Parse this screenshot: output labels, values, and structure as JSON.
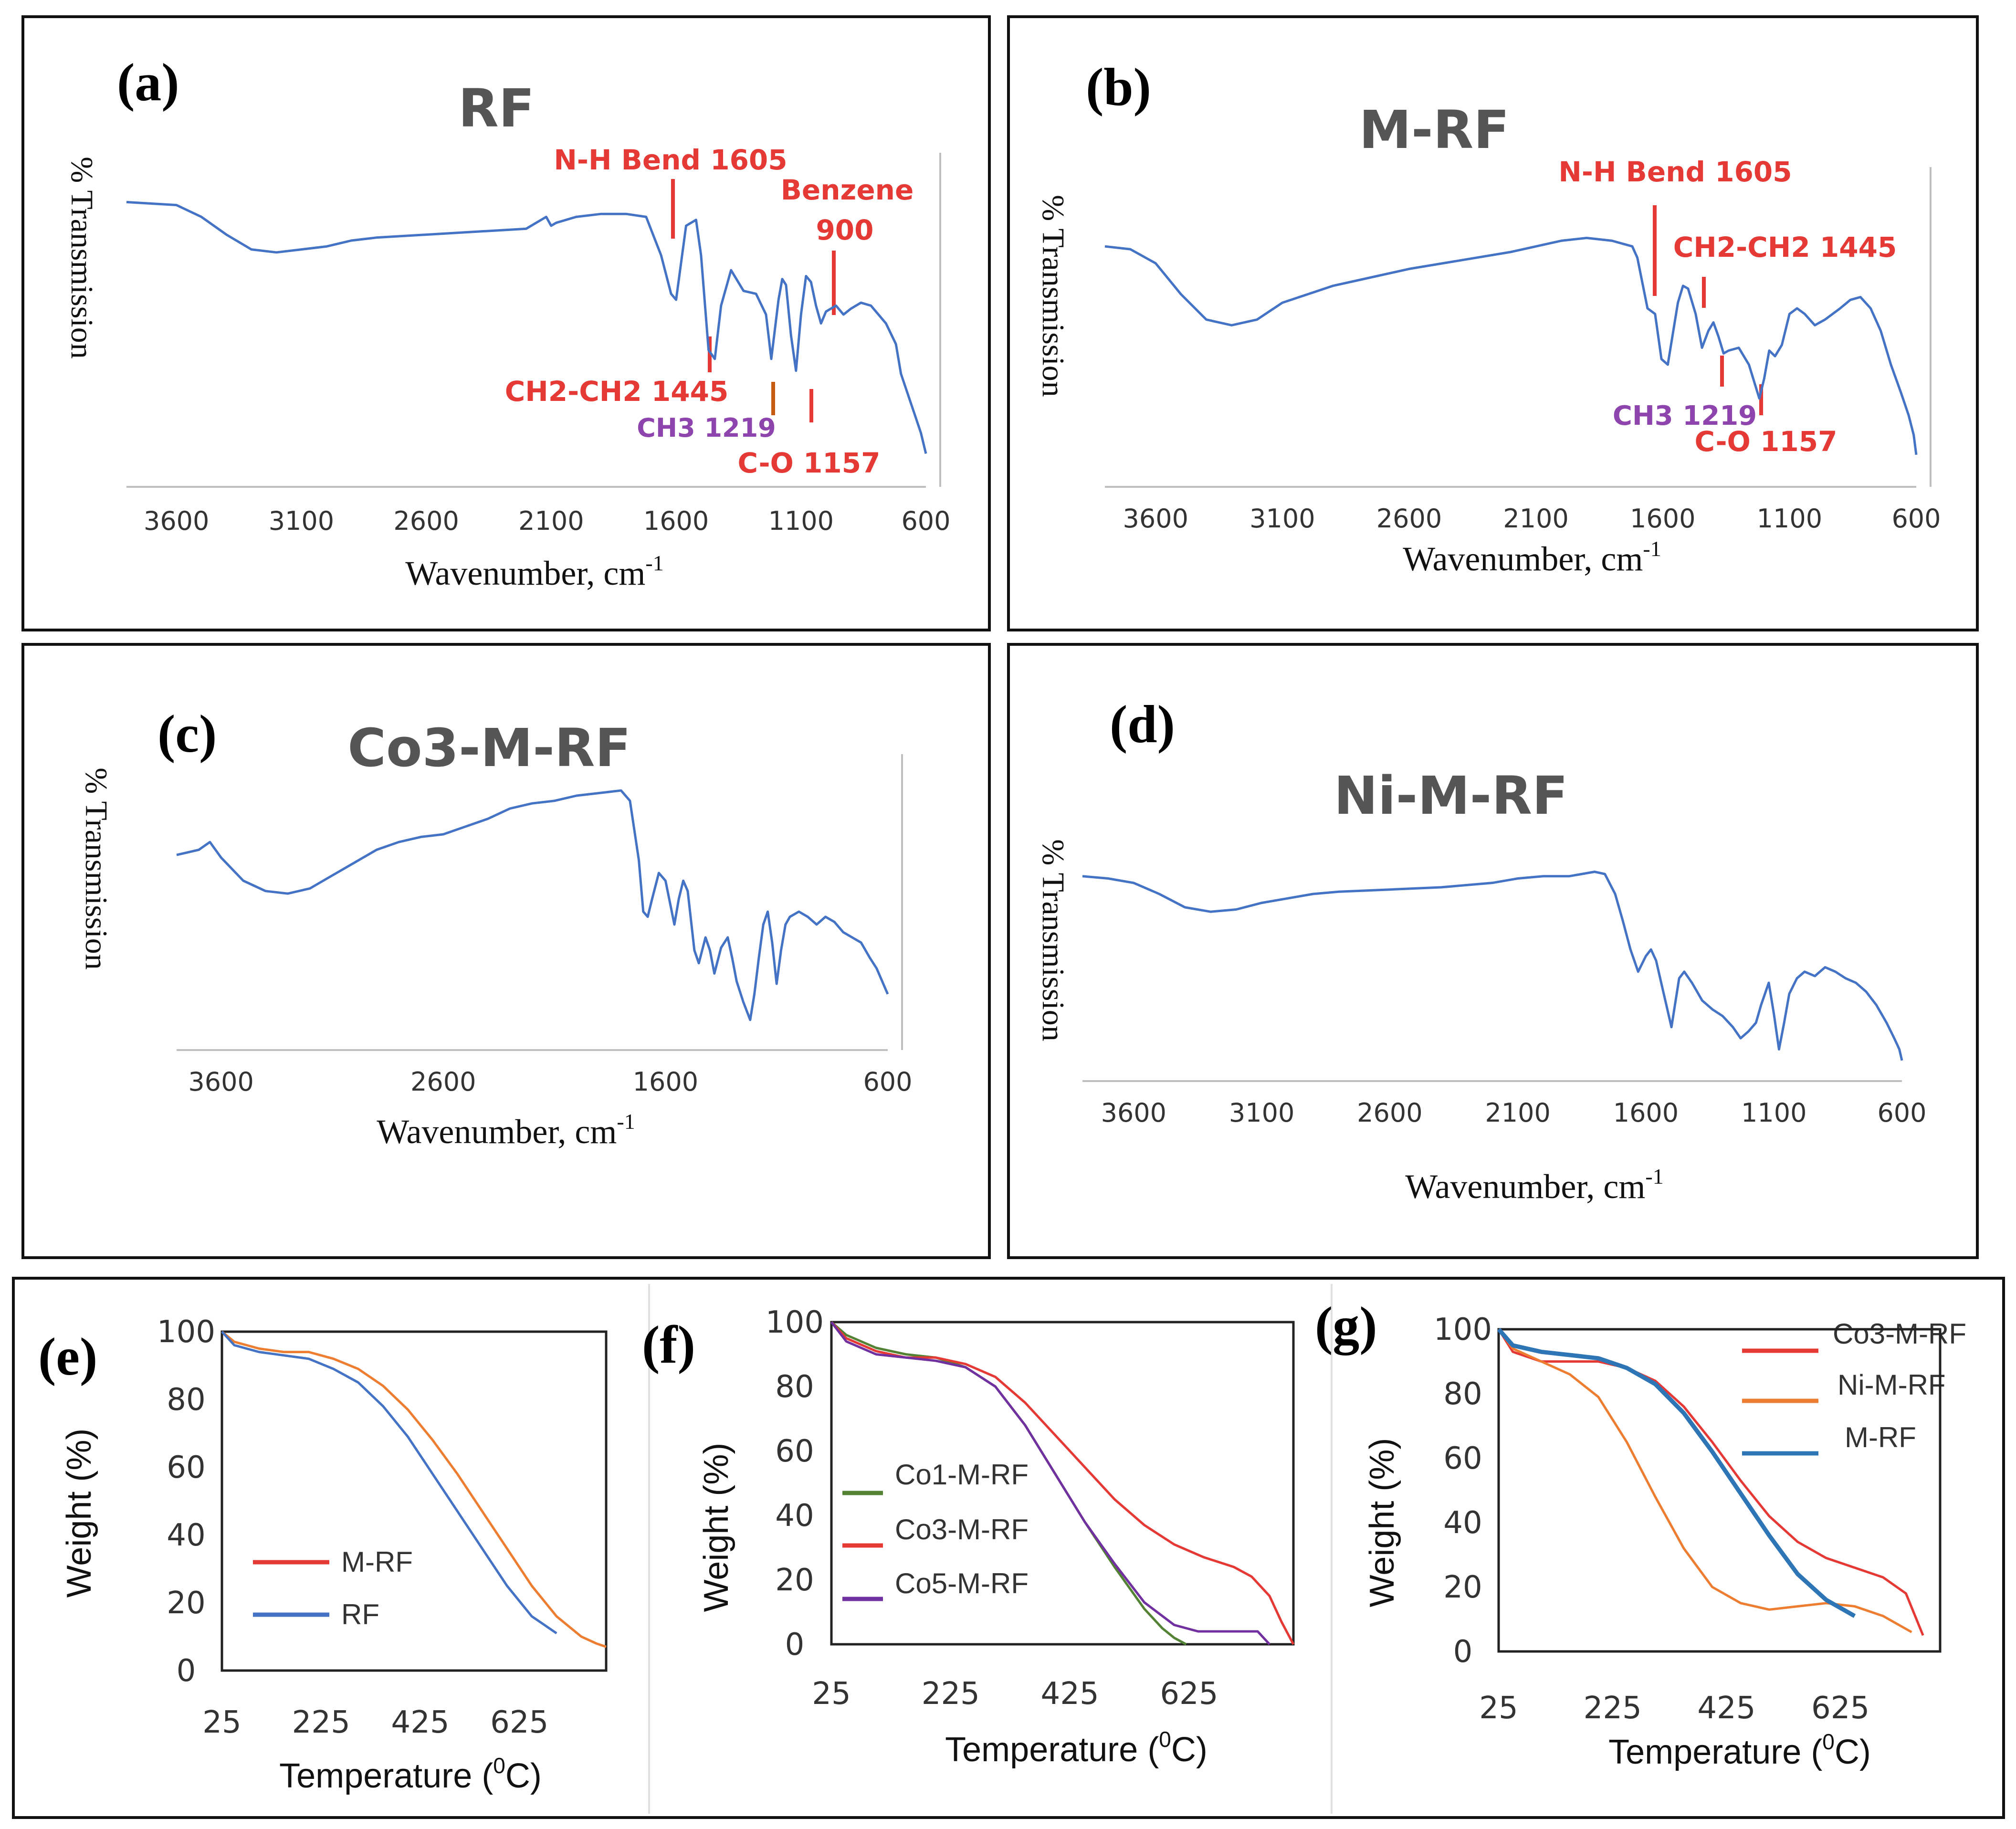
{
  "chart_data": [
    {
      "id": "a",
      "type": "line",
      "panel_label": "(a)",
      "title": "RF",
      "ylabel": "% Transmission",
      "xlabel": "Wavenumber, cm",
      "xlabel_sup": "-1",
      "xticks": [
        "3600",
        "3100",
        "2600",
        "2100",
        "1600",
        "1100",
        "600"
      ],
      "xlim": [
        3800,
        600
      ],
      "series": [
        {
          "name": "RF",
          "color": "#4472C4",
          "x": [
            3800,
            3600,
            3500,
            3400,
            3300,
            3200,
            3100,
            3000,
            2900,
            2800,
            2600,
            2400,
            2200,
            2120,
            2100,
            2080,
            2000,
            1900,
            1800,
            1720,
            1660,
            1620,
            1600,
            1560,
            1520,
            1500,
            1470,
            1445,
            1420,
            1380,
            1330,
            1280,
            1240,
            1219,
            1190,
            1175,
            1160,
            1140,
            1120,
            1100,
            1080,
            1060,
            1040,
            1020,
            1000,
            960,
            930,
            900,
            860,
            820,
            800,
            760,
            720,
            700,
            660,
            640,
            620,
            600
          ],
          "y": [
            93,
            92,
            88,
            82,
            77,
            76,
            77,
            78,
            80,
            81,
            82,
            83,
            84,
            88,
            85,
            86,
            88,
            89,
            89,
            88,
            75,
            62,
            60,
            85,
            87,
            75,
            43,
            40,
            58,
            70,
            63,
            62,
            55,
            40,
            60,
            67,
            65,
            48,
            36,
            55,
            68,
            66,
            58,
            52,
            56,
            58,
            55,
            57,
            59,
            58,
            56,
            52,
            45,
            35,
            25,
            20,
            15,
            8
          ]
        }
      ],
      "annotations": [
        {
          "label": "N-H Bend 1605",
          "x": 1605,
          "color": "#E53935"
        },
        {
          "label": "Benzene",
          "line2": "900",
          "x": 1000,
          "color": "#E53935"
        },
        {
          "label": "CH2-CH2 1445",
          "x": 1470,
          "color": "#E53935"
        },
        {
          "label": "CH3 1219",
          "x": 1219,
          "color": "#8E44AD"
        },
        {
          "label": "C-O 1157",
          "x": 1100,
          "color": "#E53935"
        }
      ]
    },
    {
      "id": "b",
      "type": "line",
      "panel_label": "(b)",
      "title": "M-RF",
      "ylabel": "% Transmission",
      "xlabel": "Wavenumber, cm",
      "xlabel_sup": "-1",
      "xticks": [
        "3600",
        "3100",
        "2600",
        "2100",
        "1600",
        "1100",
        "600"
      ],
      "xlim": [
        3800,
        600
      ],
      "series": [
        {
          "name": "M-RF",
          "color": "#4472C4",
          "x": [
            3800,
            3700,
            3600,
            3500,
            3400,
            3300,
            3200,
            3100,
            3000,
            2900,
            2800,
            2600,
            2400,
            2200,
            2000,
            1900,
            1800,
            1720,
            1700,
            1660,
            1630,
            1605,
            1580,
            1540,
            1520,
            1500,
            1470,
            1445,
            1420,
            1400,
            1380,
            1360,
            1340,
            1300,
            1260,
            1219,
            1200,
            1180,
            1157,
            1130,
            1100,
            1070,
            1040,
            1000,
            960,
            900,
            860,
            820,
            780,
            740,
            700,
            660,
            630,
            610,
            600
          ],
          "y": [
            82,
            81,
            76,
            65,
            56,
            54,
            56,
            62,
            65,
            68,
            70,
            74,
            77,
            80,
            84,
            85,
            84,
            82,
            78,
            60,
            58,
            42,
            40,
            62,
            68,
            67,
            58,
            46,
            52,
            55,
            50,
            44,
            45,
            46,
            40,
            28,
            35,
            45,
            43,
            47,
            58,
            60,
            58,
            54,
            56,
            60,
            63,
            64,
            60,
            52,
            40,
            30,
            22,
            15,
            8
          ]
        }
      ],
      "annotations": [
        {
          "label": "N-H Bend 1605",
          "x": 1605,
          "color": "#E53935"
        },
        {
          "label": "CH2-CH2 1445",
          "x": 1400,
          "color": "#E53935"
        },
        {
          "label": "CH3 1219",
          "x": 1340,
          "color": "#8E44AD"
        },
        {
          "label": "C-O 1157",
          "x": 1190,
          "color": "#E53935"
        }
      ]
    },
    {
      "id": "c",
      "type": "line",
      "panel_label": "(c)",
      "title": "Co3-M-RF",
      "ylabel": "% Transmission",
      "xlabel": "Wavenumber, cm",
      "xlabel_sup": "-1",
      "xticks": [
        "3600",
        "2600",
        "1600",
        "600"
      ],
      "xlim": [
        3800,
        600
      ],
      "series": [
        {
          "name": "Co3-M-RF",
          "color": "#4472C4",
          "x": [
            3800,
            3700,
            3650,
            3600,
            3500,
            3400,
            3300,
            3200,
            3100,
            3000,
            2900,
            2800,
            2700,
            2600,
            2500,
            2400,
            2300,
            2200,
            2100,
            2000,
            1900,
            1800,
            1760,
            1720,
            1700,
            1680,
            1660,
            1630,
            1600,
            1560,
            1540,
            1520,
            1500,
            1470,
            1450,
            1420,
            1400,
            1380,
            1350,
            1320,
            1300,
            1280,
            1250,
            1219,
            1200,
            1180,
            1160,
            1140,
            1120,
            1100,
            1080,
            1060,
            1040,
            1000,
            960,
            920,
            880,
            840,
            800,
            760,
            720,
            680,
            650,
            620,
            600
          ],
          "y": [
            72,
            74,
            77,
            71,
            62,
            58,
            57,
            59,
            64,
            69,
            74,
            77,
            79,
            80,
            83,
            86,
            90,
            92,
            93,
            95,
            96,
            97,
            93,
            70,
            50,
            48,
            55,
            65,
            62,
            45,
            55,
            62,
            58,
            35,
            30,
            40,
            35,
            26,
            36,
            40,
            32,
            23,
            15,
            8,
            18,
            32,
            45,
            50,
            38,
            22,
            35,
            45,
            48,
            50,
            48,
            45,
            48,
            46,
            42,
            40,
            38,
            32,
            28,
            22,
            18
          ]
        }
      ],
      "annotations": []
    },
    {
      "id": "d",
      "type": "line",
      "panel_label": "(d)",
      "title": "Ni-M-RF",
      "ylabel": "% Transmission",
      "xlabel": "Wavenumber, cm",
      "xlabel_sup": "-1",
      "xticks": [
        "3600",
        "3100",
        "2600",
        "2100",
        "1600",
        "1100",
        "600"
      ],
      "xlim": [
        3800,
        600
      ],
      "series": [
        {
          "name": "Ni-M-RF",
          "color": "#4472C4",
          "x": [
            3800,
            3700,
            3600,
            3500,
            3400,
            3300,
            3200,
            3100,
            3000,
            2900,
            2800,
            2600,
            2400,
            2200,
            2100,
            2000,
            1900,
            1800,
            1760,
            1720,
            1690,
            1660,
            1630,
            1600,
            1580,
            1560,
            1530,
            1500,
            1470,
            1450,
            1420,
            1380,
            1340,
            1300,
            1260,
            1230,
            1200,
            1170,
            1150,
            1120,
            1100,
            1080,
            1060,
            1040,
            1010,
            980,
            940,
            900,
            860,
            820,
            780,
            740,
            700,
            660,
            630,
            610,
            600
          ],
          "y": [
            88,
            87,
            85,
            80,
            74,
            72,
            73,
            76,
            78,
            80,
            81,
            82,
            83,
            85,
            87,
            88,
            88,
            90,
            89,
            80,
            68,
            55,
            45,
            52,
            55,
            50,
            35,
            20,
            42,
            45,
            40,
            32,
            28,
            25,
            20,
            15,
            18,
            22,
            30,
            40,
            26,
            10,
            22,
            35,
            42,
            45,
            43,
            47,
            45,
            42,
            40,
            36,
            30,
            22,
            15,
            10,
            5
          ]
        }
      ],
      "annotations": []
    },
    {
      "id": "e",
      "type": "line",
      "panel_label": "(e)",
      "ylabel": "Weight (%)",
      "xlabel": "Temperature (",
      "xlabel_sup": "0",
      "xlabel_end": "C)",
      "xticks": [
        "25",
        "225",
        "425",
        "625"
      ],
      "yticks": [
        "0",
        "20",
        "40",
        "60",
        "80",
        "100"
      ],
      "xlim": [
        25,
        800
      ],
      "ylim": [
        0,
        100
      ],
      "legend": [
        "M-RF",
        "RF"
      ],
      "series": [
        {
          "name": "M-RF",
          "color": "#ED7D31",
          "legend_color": "#E53935",
          "x": [
            25,
            50,
            100,
            150,
            200,
            250,
            300,
            350,
            400,
            450,
            500,
            550,
            600,
            650,
            700,
            750,
            780,
            800
          ],
          "y": [
            100,
            97,
            95,
            94,
            94,
            92,
            89,
            84,
            77,
            68,
            58,
            47,
            36,
            25,
            16,
            10,
            8,
            7
          ]
        },
        {
          "name": "RF",
          "color": "#4472C4",
          "legend_color": "#4472C4",
          "x": [
            25,
            50,
            100,
            150,
            200,
            250,
            300,
            350,
            400,
            450,
            500,
            550,
            600,
            650,
            700
          ],
          "y": [
            100,
            96,
            94,
            93,
            92,
            89,
            85,
            78,
            69,
            58,
            47,
            36,
            25,
            16,
            11
          ]
        }
      ]
    },
    {
      "id": "f",
      "type": "line",
      "panel_label": "(f)",
      "ylabel": "Weight (%)",
      "xlabel": "Temperature (",
      "xlabel_sup": "0",
      "xlabel_end": "C)",
      "xticks": [
        "25",
        "225",
        "425",
        "625"
      ],
      "yticks": [
        "0",
        "20",
        "40",
        "60",
        "80",
        "100"
      ],
      "xlim": [
        25,
        800
      ],
      "ylim": [
        0,
        100
      ],
      "legend": [
        "Co1-M-RF",
        "Co3-M-RF",
        "Co5-M-RF"
      ],
      "series": [
        {
          "name": "Co1-M-RF",
          "color": "#548235",
          "x": [
            25,
            50,
            100,
            150,
            200,
            250,
            300,
            350,
            400,
            450,
            500,
            550,
            580,
            600,
            620
          ],
          "y": [
            100,
            96,
            92,
            90,
            89,
            86,
            80,
            68,
            53,
            38,
            24,
            11,
            5,
            2,
            0
          ]
        },
        {
          "name": "Co3-M-RF",
          "color": "#E53935",
          "x": [
            25,
            50,
            100,
            150,
            200,
            250,
            300,
            350,
            400,
            450,
            500,
            550,
            600,
            650,
            700,
            730,
            760,
            780,
            800
          ],
          "y": [
            100,
            95,
            91,
            89,
            89,
            87,
            83,
            75,
            65,
            55,
            45,
            37,
            31,
            27,
            24,
            21,
            15,
            7,
            0
          ]
        },
        {
          "name": "Co5-M-RF",
          "color": "#7030A0",
          "x": [
            25,
            50,
            100,
            150,
            200,
            250,
            300,
            350,
            400,
            450,
            500,
            550,
            600,
            640,
            700,
            740,
            760
          ],
          "y": [
            100,
            94,
            90,
            89,
            88,
            86,
            80,
            68,
            53,
            38,
            25,
            13,
            6,
            4,
            4,
            4,
            0
          ]
        }
      ]
    },
    {
      "id": "g",
      "type": "line",
      "panel_label": "(g)",
      "ylabel": "Weight (%)",
      "xlabel": "Temperature (",
      "xlabel_sup": "0",
      "xlabel_end": "C)",
      "xticks": [
        "25",
        "225",
        "425",
        "625"
      ],
      "yticks": [
        "0",
        "20",
        "40",
        "60",
        "80",
        "100"
      ],
      "xlim": [
        25,
        800
      ],
      "ylim": [
        0,
        100
      ],
      "legend": [
        "Co3-M-RF",
        "Ni-M-RF",
        "M-RF"
      ],
      "series": [
        {
          "name": "Co3-M-RF",
          "color": "#E53935",
          "x": [
            25,
            50,
            100,
            150,
            200,
            250,
            300,
            350,
            400,
            450,
            500,
            550,
            600,
            650,
            700,
            740,
            770
          ],
          "y": [
            100,
            93,
            90,
            90,
            90,
            88,
            84,
            76,
            65,
            53,
            42,
            34,
            29,
            26,
            23,
            18,
            5
          ]
        },
        {
          "name": "Ni-M-RF",
          "color": "#ED7D31",
          "x": [
            25,
            50,
            100,
            150,
            200,
            250,
            300,
            350,
            400,
            450,
            500,
            550,
            600,
            650,
            700,
            750
          ],
          "y": [
            100,
            94,
            90,
            86,
            79,
            65,
            48,
            32,
            20,
            15,
            13,
            14,
            15,
            14,
            11,
            6
          ]
        },
        {
          "name": "M-RF",
          "color": "#2E75B6",
          "x": [
            25,
            50,
            100,
            150,
            200,
            250,
            300,
            350,
            400,
            450,
            500,
            550,
            600,
            650
          ],
          "y": [
            100,
            95,
            93,
            92,
            91,
            88,
            83,
            74,
            62,
            49,
            36,
            24,
            16,
            11
          ]
        }
      ]
    }
  ]
}
